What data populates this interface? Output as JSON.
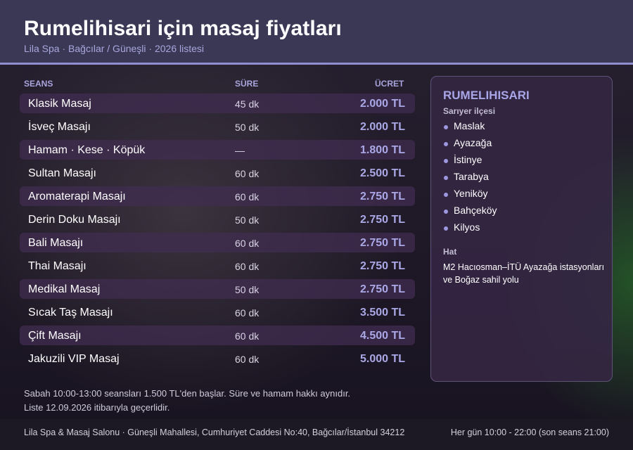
{
  "header": {
    "title": "Rumelihisari için masaj fiyatları",
    "subtitle": "Lila Spa · Bağcılar / Güneşli · 2026 listesi"
  },
  "table": {
    "columns": {
      "session": "SEANS",
      "duration": "SÜRE",
      "price": "ÜCRET"
    },
    "rows": [
      {
        "name": "Klasik Masaj",
        "duration": "45 dk",
        "price": "2.000 TL"
      },
      {
        "name": "İsveç Masajı",
        "duration": "50 dk",
        "price": "2.000 TL"
      },
      {
        "name": "Hamam · Kese · Köpük",
        "duration": "—",
        "price": "1.800 TL"
      },
      {
        "name": "Sultan Masajı",
        "duration": "60 dk",
        "price": "2.500 TL"
      },
      {
        "name": "Aromaterapi Masajı",
        "duration": "60 dk",
        "price": "2.750 TL"
      },
      {
        "name": "Derin Doku Masajı",
        "duration": "50 dk",
        "price": "2.750 TL"
      },
      {
        "name": "Bali Masajı",
        "duration": "60 dk",
        "price": "2.750 TL"
      },
      {
        "name": "Thai Masajı",
        "duration": "60 dk",
        "price": "2.750 TL"
      },
      {
        "name": "Medikal Masaj",
        "duration": "50 dk",
        "price": "2.750 TL"
      },
      {
        "name": "Sıcak Taş Masajı",
        "duration": "60 dk",
        "price": "3.500 TL"
      },
      {
        "name": "Çift Masajı",
        "duration": "60 dk",
        "price": "4.500 TL"
      },
      {
        "name": "Jakuzili VIP Masaj",
        "duration": "60 dk",
        "price": "5.000 TL"
      }
    ],
    "notes": [
      "Sabah 10:00-13:00 seansları 1.500 TL'den başlar. Süre ve hamam hakkı aynıdır.",
      "Liste 12.09.2026 itibarıyla geçerlidir."
    ]
  },
  "panel": {
    "title": "RUMELIHISARI",
    "district": "Sarıyer ilçesi",
    "neighborhoods": [
      "Maslak",
      "Ayazağa",
      "İstinye",
      "Tarabya",
      "Yeniköy",
      "Bahçeköy",
      "Kilyos"
    ],
    "line_label": "Hat",
    "line_text": "M2 Hacıosman–İTÜ Ayazağa istasyonları ve Boğaz sahil yolu"
  },
  "footer": {
    "address": "Lila Spa & Masaj Salonu · Güneşli Mahallesi, Cumhuriyet Caddesi No:40, Bağcılar/İstanbul 34212",
    "hours": "Her gün 10:00 - 22:00 (son seans 21:00)"
  },
  "colors": {
    "header_bg": "#3b3856",
    "accent": "#8f8ed0",
    "price": "#aaa8e6"
  }
}
